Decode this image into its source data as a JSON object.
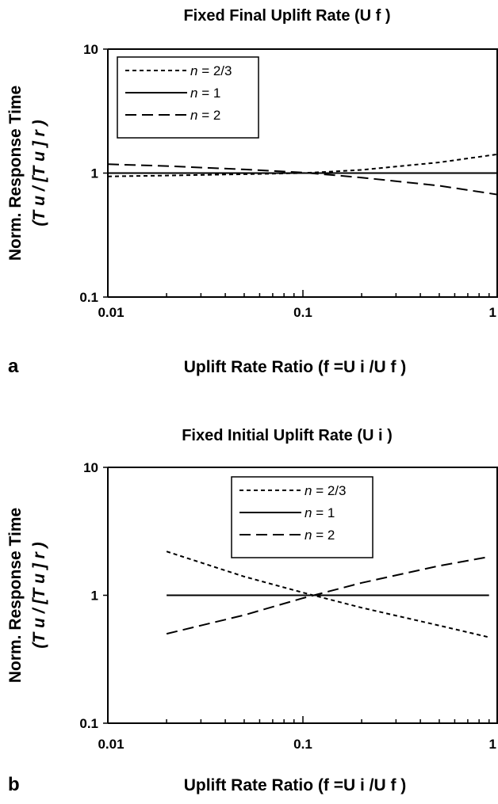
{
  "chart_data": [
    {
      "panel": "a",
      "type": "line",
      "title": "Fixed Final Uplift Rate (U f )",
      "xlabel": "Uplift Rate Ratio (f =U i /U f )",
      "ylabel_line1": "Norm. Response Time",
      "ylabel_line2": "(T u / [T u ] r )",
      "x_scale": "log",
      "y_scale": "log",
      "xlim": [
        0.01,
        1
      ],
      "ylim": [
        0.1,
        10
      ],
      "x_ticks": [
        0.01,
        0.1,
        1
      ],
      "x_tick_labels": [
        "0.01",
        "0.1",
        "1"
      ],
      "y_ticks": [
        0.1,
        1,
        10
      ],
      "y_tick_labels": [
        "0.1",
        "1",
        "10"
      ],
      "grid": false,
      "legend_position": "top-left",
      "series": [
        {
          "name": "n = 2/3",
          "label_italic": "n",
          "label_rest": " = 2/3",
          "dash": "short-dash",
          "x": [
            0.01,
            0.02,
            0.05,
            0.1,
            0.2,
            0.5,
            1.0
          ],
          "y": [
            0.94,
            0.955,
            0.98,
            1.0,
            1.06,
            1.22,
            1.42
          ]
        },
        {
          "name": "n = 1",
          "label_italic": "n",
          "label_rest": " = 1",
          "dash": "solid",
          "x": [
            0.01,
            1.0
          ],
          "y": [
            1.0,
            1.0
          ]
        },
        {
          "name": "n = 2",
          "label_italic": "n",
          "label_rest": " = 2",
          "dash": "long-dash",
          "x": [
            0.01,
            0.02,
            0.05,
            0.1,
            0.2,
            0.5,
            1.0
          ],
          "y": [
            1.18,
            1.14,
            1.07,
            1.01,
            0.92,
            0.79,
            0.67
          ]
        }
      ]
    },
    {
      "panel": "b",
      "type": "line",
      "title": "Fixed Initial Uplift Rate (U i )",
      "xlabel": "Uplift Rate Ratio (f =U i /U f )",
      "ylabel_line1": "Norm. Response Time",
      "ylabel_line2": "(T u / [T u ] r )",
      "x_scale": "log",
      "y_scale": "log",
      "xlim": [
        0.01,
        1
      ],
      "ylim": [
        0.1,
        10
      ],
      "x_ticks": [
        0.01,
        0.1,
        1
      ],
      "x_tick_labels": [
        "0.01",
        "0.1",
        "1"
      ],
      "y_ticks": [
        0.1,
        1,
        10
      ],
      "y_tick_labels": [
        "0.1",
        "1",
        "10"
      ],
      "grid": false,
      "legend_position": "top-center",
      "series": [
        {
          "name": "n = 2/3",
          "label_italic": "n",
          "label_rest": " = 2/3",
          "dash": "short-dash",
          "x": [
            0.02,
            0.05,
            0.1,
            0.2,
            0.5,
            0.9
          ],
          "y": [
            2.2,
            1.4,
            1.05,
            0.8,
            0.58,
            0.47
          ]
        },
        {
          "name": "n = 1",
          "label_italic": "n",
          "label_rest": " = 1",
          "dash": "solid",
          "x": [
            0.02,
            0.9
          ],
          "y": [
            1.0,
            1.0
          ]
        },
        {
          "name": "n = 2",
          "label_italic": "n",
          "label_rest": " = 2",
          "dash": "long-dash",
          "x": [
            0.02,
            0.05,
            0.1,
            0.2,
            0.5,
            0.9
          ],
          "y": [
            0.5,
            0.7,
            0.95,
            1.25,
            1.7,
            2.0
          ]
        }
      ]
    }
  ]
}
